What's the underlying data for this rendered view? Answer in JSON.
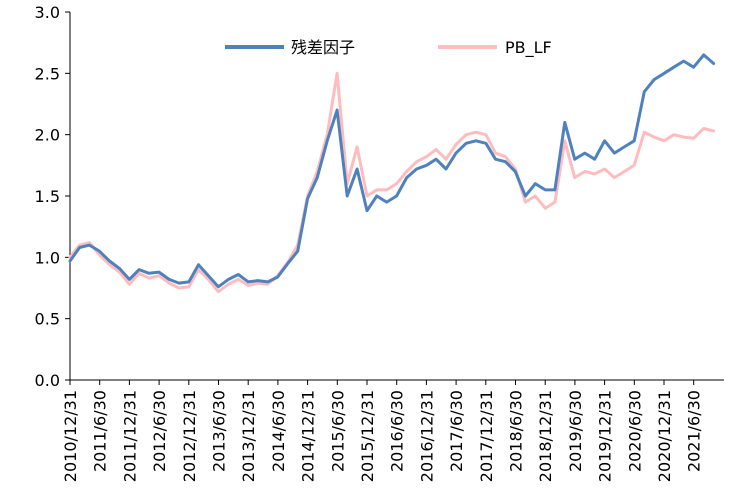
{
  "chart_data": {
    "type": "line",
    "title": "",
    "xlabel": "",
    "ylabel": "",
    "ylim": [
      0,
      3
    ],
    "yticks": [
      "0.0",
      "0.5",
      "1.0",
      "1.5",
      "2.0",
      "2.5",
      "3.0"
    ],
    "xticks": [
      "2010/12/31",
      "2011/6/30",
      "2011/12/31",
      "2012/6/30",
      "2012/12/31",
      "2013/6/30",
      "2013/12/31",
      "2014/6/30",
      "2014/12/31",
      "2015/6/30",
      "2015/12/31",
      "2016/6/30",
      "2016/12/31",
      "2017/6/30",
      "2017/12/31",
      "2018/6/30",
      "2018/12/31",
      "2019/6/30",
      "2019/12/31",
      "2020/6/30",
      "2020/12/31",
      "2021/6/30"
    ],
    "grid": false,
    "legend_position": "top",
    "x": [
      "2010/12/31",
      "2011/2/28",
      "2011/4/30",
      "2011/6/30",
      "2011/8/31",
      "2011/10/31",
      "2011/12/31",
      "2012/2/29",
      "2012/4/30",
      "2012/6/30",
      "2012/8/31",
      "2012/10/31",
      "2012/12/31",
      "2013/2/28",
      "2013/4/30",
      "2013/6/30",
      "2013/8/31",
      "2013/10/31",
      "2013/12/31",
      "2014/2/28",
      "2014/4/30",
      "2014/6/30",
      "2014/8/31",
      "2014/10/31",
      "2014/12/31",
      "2015/2/28",
      "2015/4/30",
      "2015/6/30",
      "2015/8/31",
      "2015/10/31",
      "2015/12/31",
      "2016/2/29",
      "2016/4/30",
      "2016/6/30",
      "2016/8/31",
      "2016/10/31",
      "2016/12/31",
      "2017/2/28",
      "2017/4/30",
      "2017/6/30",
      "2017/8/31",
      "2017/10/31",
      "2017/12/31",
      "2018/2/28",
      "2018/4/30",
      "2018/6/30",
      "2018/8/31",
      "2018/10/31",
      "2018/12/31",
      "2019/2/28",
      "2019/4/30",
      "2019/6/30",
      "2019/8/31",
      "2019/10/31",
      "2019/12/31",
      "2020/2/29",
      "2020/4/30",
      "2020/6/30",
      "2020/8/31",
      "2020/10/31",
      "2020/12/31",
      "2021/2/28",
      "2021/4/30",
      "2021/6/30",
      "2021/8/31",
      "2021/10/31"
    ],
    "series": [
      {
        "name": "残差因子",
        "color": "#4f81bd",
        "values": [
          0.97,
          1.08,
          1.1,
          1.05,
          0.97,
          0.91,
          0.82,
          0.9,
          0.87,
          0.88,
          0.82,
          0.79,
          0.8,
          0.94,
          0.85,
          0.76,
          0.82,
          0.86,
          0.8,
          0.81,
          0.8,
          0.84,
          0.95,
          1.05,
          1.48,
          1.65,
          1.95,
          2.2,
          1.5,
          1.72,
          1.38,
          1.5,
          1.45,
          1.5,
          1.65,
          1.72,
          1.75,
          1.8,
          1.72,
          1.85,
          1.93,
          1.95,
          1.93,
          1.8,
          1.78,
          1.7,
          1.5,
          1.6,
          1.55,
          1.55,
          2.1,
          1.8,
          1.85,
          1.8,
          1.95,
          1.85,
          1.9,
          1.95,
          2.35,
          2.45,
          2.5,
          2.55,
          2.6,
          2.55,
          2.65,
          2.58
        ]
      },
      {
        "name": "PB_LF",
        "color": "#ffbcbf",
        "values": [
          1.0,
          1.1,
          1.12,
          1.02,
          0.94,
          0.88,
          0.78,
          0.87,
          0.83,
          0.85,
          0.79,
          0.75,
          0.76,
          0.9,
          0.82,
          0.72,
          0.78,
          0.82,
          0.77,
          0.79,
          0.78,
          0.85,
          0.96,
          1.1,
          1.5,
          1.7,
          2.0,
          2.5,
          1.6,
          1.9,
          1.5,
          1.55,
          1.55,
          1.6,
          1.7,
          1.78,
          1.82,
          1.88,
          1.8,
          1.92,
          2.0,
          2.02,
          2.0,
          1.85,
          1.82,
          1.72,
          1.45,
          1.5,
          1.4,
          1.45,
          1.95,
          1.65,
          1.7,
          1.68,
          1.72,
          1.65,
          1.7,
          1.75,
          2.02,
          1.98,
          1.95,
          2.0,
          1.98,
          1.97,
          2.05,
          2.03
        ]
      }
    ]
  }
}
